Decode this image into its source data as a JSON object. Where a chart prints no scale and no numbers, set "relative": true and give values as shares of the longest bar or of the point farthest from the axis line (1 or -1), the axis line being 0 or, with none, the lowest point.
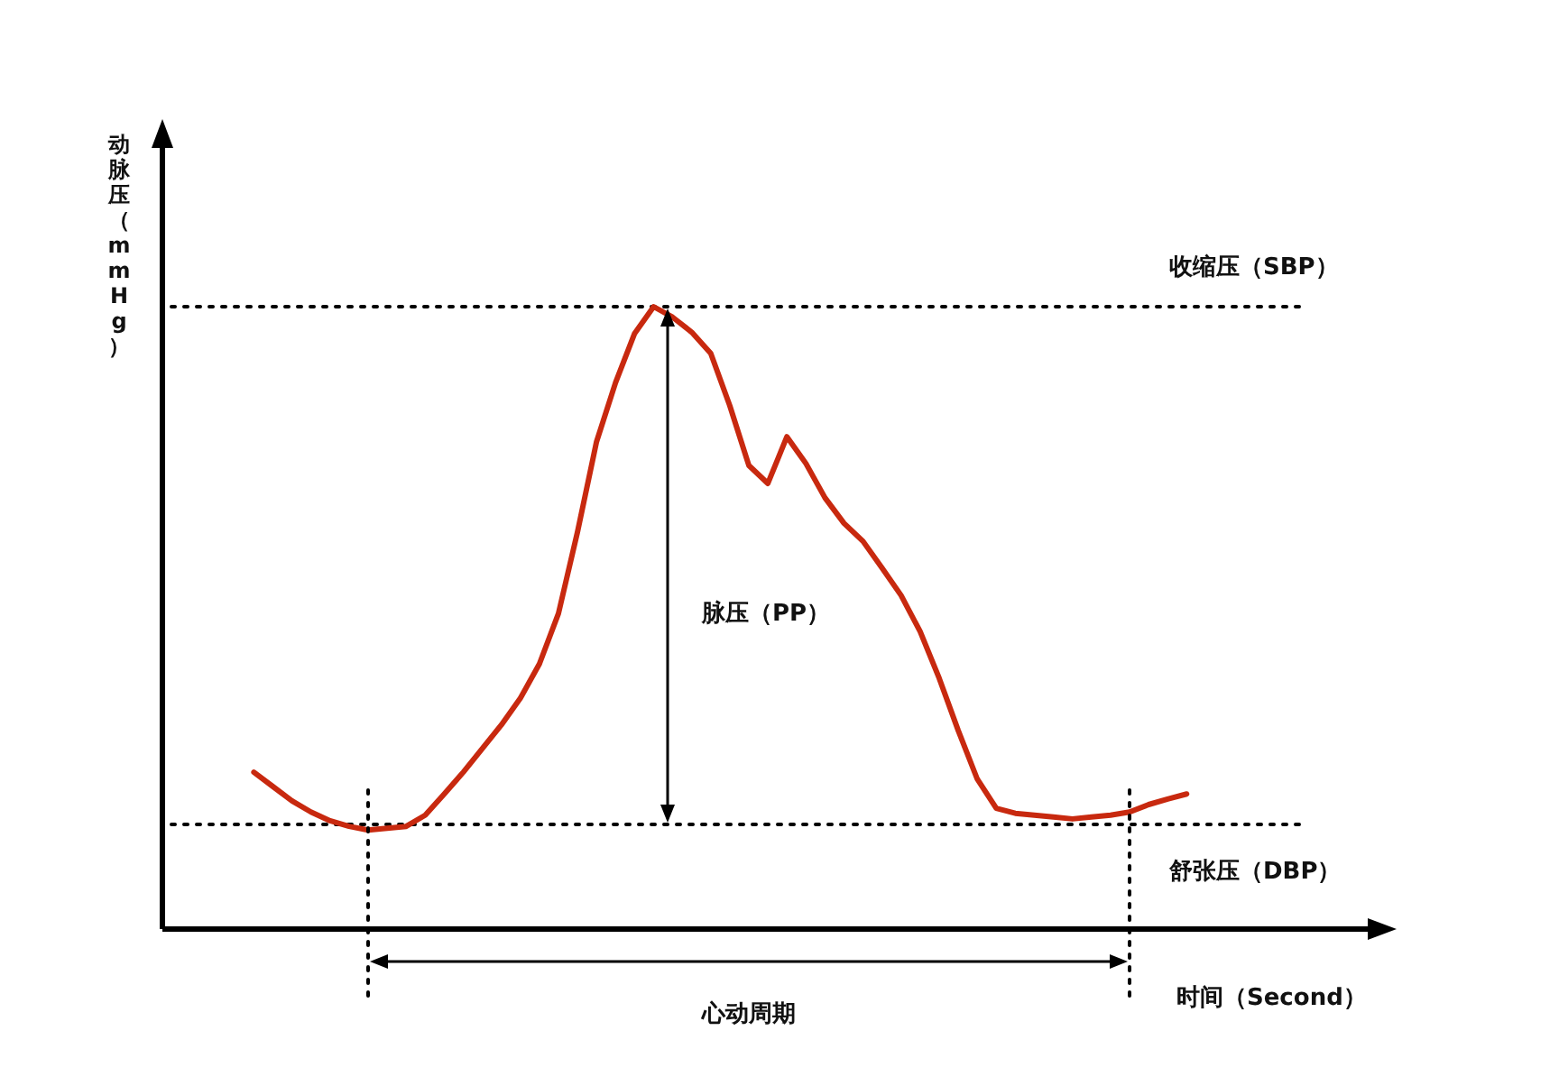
{
  "chart_data": {
    "type": "line",
    "relative": true,
    "xlabel": "时间（Second）",
    "ylabel": "动脉压（mmHg）",
    "categories": [
      null,
      null,
      null,
      null,
      null,
      null,
      null,
      null,
      null,
      null,
      null,
      null,
      null,
      null,
      null,
      null,
      null,
      null,
      null,
      null,
      null,
      null,
      null,
      null,
      null,
      null,
      null,
      null,
      null,
      null,
      null,
      null,
      null,
      null,
      null,
      null,
      null,
      null,
      null,
      null,
      null,
      null,
      null,
      null,
      null,
      null,
      null,
      null,
      null,
      null
    ],
    "series": [
      {
        "color": "#c8290f",
        "values": [
          0.252,
          0.229,
          0.206,
          0.188,
          0.174,
          0.165,
          0.159,
          0.162,
          0.165,
          0.183,
          0.217,
          0.252,
          0.29,
          0.328,
          0.371,
          0.426,
          0.507,
          0.638,
          0.783,
          0.878,
          0.957,
          1.0,
          0.983,
          0.959,
          0.925,
          0.841,
          0.745,
          0.716,
          0.791,
          0.748,
          0.693,
          0.652,
          0.623,
          0.58,
          0.536,
          0.478,
          0.403,
          0.319,
          0.241,
          0.194,
          0.186,
          0.183,
          0.18,
          0.177,
          0.18,
          0.183,
          0.188,
          0.2,
          0.209,
          0.217
        ]
      }
    ],
    "ref_lines": [
      {
        "axis": "y",
        "value": 1.0,
        "label": "收缩压（SBP）",
        "line_style": "dotted"
      },
      {
        "axis": "y",
        "value": 0.168,
        "label": "舒张压（DBP）",
        "line_style": "dotted"
      }
    ],
    "annotations": [
      "脉压（PP）",
      "心动周期"
    ]
  }
}
